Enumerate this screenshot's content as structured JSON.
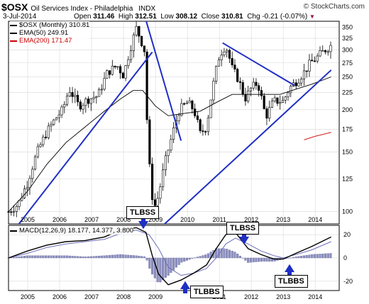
{
  "header": {
    "symbol": "$OSX",
    "name": "Oil Services Index - Philadelphia",
    "exchange": "INDX",
    "credit": "© StockCharts.com",
    "date": "3-Jul-2014",
    "open_label": "Open",
    "open": "311.46",
    "high_label": "High",
    "high": "312.51",
    "low_label": "Low",
    "low": "308.12",
    "close_label": "Close",
    "close": "310.81",
    "chg_label": "Chg",
    "chg": "-0.21 (-0.07%)"
  },
  "chart_data": [
    {
      "type": "candlestick",
      "panel": "price",
      "y_scale": "log",
      "ylim": [
        92,
        365
      ],
      "xlim": [
        2004.4,
        2014.75
      ],
      "y_ticks": [
        100,
        125,
        150,
        175,
        200,
        225,
        250,
        275,
        300,
        325,
        350
      ],
      "x_ticks": [
        {
          "value": 2005,
          "label": "2005"
        },
        {
          "value": 2006,
          "label": "2006"
        },
        {
          "value": 2007,
          "label": "2007"
        },
        {
          "value": 2008,
          "label": "2008"
        },
        {
          "value": 2009,
          "label": "2009"
        },
        {
          "value": 2010,
          "label": "2010"
        },
        {
          "value": 2011,
          "label": "2011"
        },
        {
          "value": 2012,
          "label": "2012"
        },
        {
          "value": 2013,
          "label": "2013"
        },
        {
          "value": 2014,
          "label": "2014"
        }
      ],
      "grid": true,
      "legend": [
        {
          "label": "$OSX (Monthly) 310.81",
          "color": "#000000"
        },
        {
          "label": "EMA(50) 249.91",
          "color": "#000000"
        },
        {
          "label": "EMA(200) 171.47",
          "color": "#cc0000"
        }
      ],
      "price_path": [
        [
          2004.4,
          100
        ],
        [
          2004.7,
          105
        ],
        [
          2005.0,
          122
        ],
        [
          2005.3,
          150
        ],
        [
          2005.6,
          172
        ],
        [
          2005.9,
          190
        ],
        [
          2006.1,
          200
        ],
        [
          2006.3,
          230
        ],
        [
          2006.6,
          205
        ],
        [
          2006.9,
          215
        ],
        [
          2007.2,
          220
        ],
        [
          2007.5,
          258
        ],
        [
          2007.8,
          270
        ],
        [
          2008.0,
          252
        ],
        [
          2008.2,
          300
        ],
        [
          2008.4,
          348
        ],
        [
          2008.55,
          320
        ],
        [
          2008.65,
          300
        ],
        [
          2008.75,
          165
        ],
        [
          2008.85,
          120
        ],
        [
          2008.95,
          102
        ],
        [
          2009.1,
          112
        ],
        [
          2009.3,
          140
        ],
        [
          2009.5,
          165
        ],
        [
          2009.75,
          200
        ],
        [
          2010.0,
          210
        ],
        [
          2010.2,
          200
        ],
        [
          2010.4,
          170
        ],
        [
          2010.6,
          178
        ],
        [
          2010.8,
          235
        ],
        [
          2011.0,
          290
        ],
        [
          2011.2,
          310
        ],
        [
          2011.4,
          265
        ],
        [
          2011.6,
          245
        ],
        [
          2011.8,
          215
        ],
        [
          2012.0,
          232
        ],
        [
          2012.2,
          240
        ],
        [
          2012.45,
          190
        ],
        [
          2012.7,
          212
        ],
        [
          2013.0,
          212
        ],
        [
          2013.2,
          232
        ],
        [
          2013.45,
          245
        ],
        [
          2013.65,
          258
        ],
        [
          2013.85,
          275
        ],
        [
          2014.05,
          285
        ],
        [
          2014.3,
          300
        ],
        [
          2014.5,
          310
        ]
      ],
      "ema50": [
        [
          2004.4,
          100
        ],
        [
          2005.0,
          115
        ],
        [
          2005.6,
          138
        ],
        [
          2006.2,
          160
        ],
        [
          2006.8,
          178
        ],
        [
          2007.4,
          198
        ],
        [
          2007.9,
          215
        ],
        [
          2008.3,
          228
        ],
        [
          2008.6,
          228
        ],
        [
          2009.0,
          205
        ],
        [
          2009.4,
          192
        ],
        [
          2009.9,
          195
        ],
        [
          2010.4,
          198
        ],
        [
          2010.9,
          210
        ],
        [
          2011.4,
          222
        ],
        [
          2011.9,
          222
        ],
        [
          2012.4,
          222
        ],
        [
          2012.9,
          222
        ],
        [
          2013.4,
          230
        ],
        [
          2013.9,
          238
        ],
        [
          2014.5,
          250
        ]
      ],
      "ema200": [
        [
          2013.65,
          163
        ],
        [
          2014.0,
          167
        ],
        [
          2014.5,
          171.5
        ]
      ],
      "trendlines": [
        {
          "from": [
            2004.4,
            84
          ],
          "to": [
            2008.9,
            296
          ]
        },
        {
          "from": [
            2008.7,
            368
          ],
          "to": [
            2009.8,
            162
          ]
        },
        {
          "from": [
            2008.95,
            86
          ],
          "to": [
            2014.5,
            262
          ]
        },
        {
          "from": [
            2011.1,
            315
          ],
          "to": [
            2013.35,
            236
          ]
        }
      ]
    },
    {
      "type": "macd",
      "panel": "indicator",
      "legend_label": "MACD(12,26,9) 18.177, 14.377, 3.800",
      "ylim": [
        -28,
        28
      ],
      "y_ticks": [
        -20,
        0,
        20
      ],
      "x_ticks": [
        {
          "value": 2005,
          "label": "2005"
        },
        {
          "value": 2006,
          "label": "2006"
        },
        {
          "value": 2007,
          "label": "2007"
        },
        {
          "value": 2008,
          "label": "2008"
        },
        {
          "value": 2009,
          "label": "2009"
        },
        {
          "value": 2011,
          "label": "2011"
        },
        {
          "value": 2012,
          "label": "2012"
        },
        {
          "value": 2013,
          "label": "2013"
        },
        {
          "value": 2014,
          "label": "2014"
        }
      ],
      "macd": [
        [
          2004.4,
          0
        ],
        [
          2005.0,
          6
        ],
        [
          2005.6,
          11
        ],
        [
          2006.2,
          14
        ],
        [
          2006.8,
          15
        ],
        [
          2007.4,
          18
        ],
        [
          2007.9,
          24
        ],
        [
          2008.4,
          26
        ],
        [
          2008.7,
          22
        ],
        [
          2008.9,
          2
        ],
        [
          2009.1,
          -14
        ],
        [
          2009.4,
          -23
        ],
        [
          2009.8,
          -19
        ],
        [
          2010.2,
          -13
        ],
        [
          2010.6,
          -6
        ],
        [
          2010.9,
          8
        ],
        [
          2011.2,
          20
        ],
        [
          2011.5,
          22
        ],
        [
          2011.9,
          8
        ],
        [
          2012.3,
          3
        ],
        [
          2012.7,
          -1
        ],
        [
          2013.0,
          -1
        ],
        [
          2013.4,
          4
        ],
        [
          2013.9,
          10
        ],
        [
          2014.5,
          18
        ]
      ],
      "signal": [
        [
          2004.4,
          0
        ],
        [
          2005.0,
          4
        ],
        [
          2005.6,
          9
        ],
        [
          2006.2,
          12
        ],
        [
          2006.8,
          14
        ],
        [
          2007.4,
          16
        ],
        [
          2007.9,
          21
        ],
        [
          2008.4,
          24
        ],
        [
          2008.8,
          20
        ],
        [
          2009.1,
          8
        ],
        [
          2009.4,
          -8
        ],
        [
          2009.8,
          -15
        ],
        [
          2010.2,
          -13
        ],
        [
          2010.6,
          -9
        ],
        [
          2010.9,
          0
        ],
        [
          2011.2,
          12
        ],
        [
          2011.5,
          17
        ],
        [
          2011.9,
          12
        ],
        [
          2012.3,
          6
        ],
        [
          2012.7,
          2
        ],
        [
          2013.0,
          0
        ],
        [
          2013.4,
          3
        ],
        [
          2013.9,
          7
        ],
        [
          2014.5,
          14
        ]
      ]
    }
  ],
  "annotations": [
    {
      "label": "TLBSS"
    },
    {
      "label": "TLBSS"
    },
    {
      "label": "TLBBS"
    },
    {
      "label": "TLBBS"
    }
  ],
  "colors": {
    "trendline": "#1f2fc4",
    "ema200": "#cc0000",
    "histogram": "#8c8fbf",
    "signal": "#6b6fb8",
    "grid": "#d8d8d8"
  }
}
